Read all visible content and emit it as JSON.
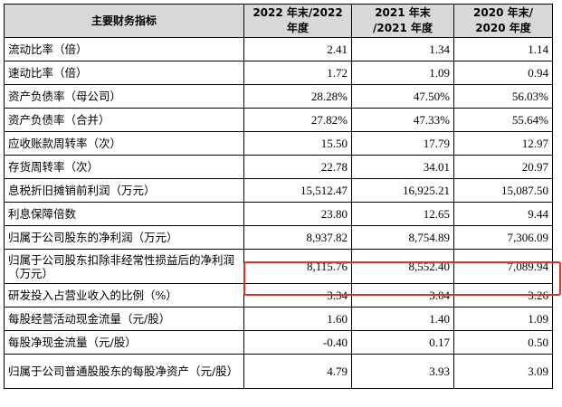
{
  "table": {
    "headers": [
      "主要财务指标",
      "2022 年末/2022 年度",
      "2021 年末 /2021 年度",
      "2020 年末/ 2020 年度"
    ],
    "rows": [
      {
        "label": "流动比率（倍）",
        "values": [
          "2.41",
          "1.34",
          "1.14"
        ]
      },
      {
        "label": "速动比率（倍）",
        "values": [
          "1.72",
          "1.09",
          "0.94"
        ]
      },
      {
        "label": "资产负债率（母公司）",
        "values": [
          "28.28%",
          "47.50%",
          "56.03%"
        ]
      },
      {
        "label": "资产负债率（合并）",
        "values": [
          "27.82%",
          "47.33%",
          "55.64%"
        ]
      },
      {
        "label": "应收账款周转率（次）",
        "values": [
          "15.50",
          "17.79",
          "12.97"
        ]
      },
      {
        "label": "存货周转率（次）",
        "values": [
          "22.78",
          "34.01",
          "20.97"
        ]
      },
      {
        "label": "息税折旧摊销前利润（万元）",
        "values": [
          "15,512.47",
          "16,925.21",
          "15,087.50"
        ]
      },
      {
        "label": "利息保障倍数",
        "values": [
          "23.80",
          "12.65",
          "9.44"
        ]
      },
      {
        "label": "归属于公司股东的净利润（万元）",
        "values": [
          "8,937.82",
          "8,754.89",
          "7,306.09"
        ]
      },
      {
        "label": "归属于公司股东扣除非经常性损益后的净利润（万元）",
        "values": [
          "8,115.76",
          "8,552.40",
          "7,089.94"
        ]
      },
      {
        "label": "研发投入占营业收入的比例（%）",
        "values": [
          "3.34",
          "3.04",
          "3.26"
        ]
      },
      {
        "label": "每股经营活动现金流量（元/股）",
        "values": [
          "1.60",
          "1.40",
          "1.09"
        ]
      },
      {
        "label": "每股净现金流量（元/股）",
        "values": [
          "-0.40",
          "0.17",
          "0.50"
        ]
      },
      {
        "label": "归属于公司普通股股东的每股净资产（元/股）",
        "values": [
          "4.79",
          "3.93",
          "3.09"
        ]
      }
    ]
  },
  "colors": {
    "header_bg": "#d9d9d9",
    "highlight_border": "#e0322b"
  }
}
